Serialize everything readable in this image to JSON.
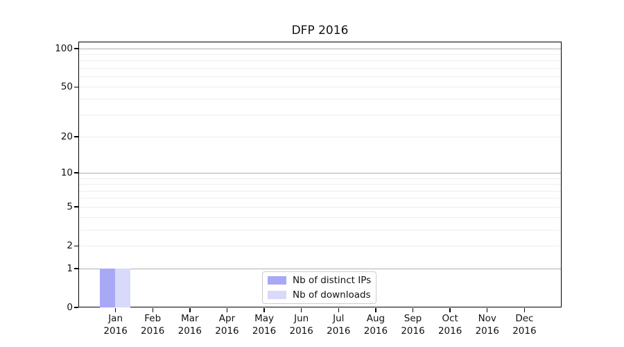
{
  "title": "DFP 2016",
  "chart_data": {
    "type": "bar",
    "title": "DFP 2016",
    "categories": [
      "Jan",
      "Feb",
      "Mar",
      "Apr",
      "May",
      "Jun",
      "Jul",
      "Aug",
      "Sep",
      "Oct",
      "Nov",
      "Dec"
    ],
    "x_year": "2016",
    "series": [
      {
        "name": "Nb of distinct IPs",
        "color": "#a8a8f6",
        "values": [
          1,
          0,
          0,
          0,
          0,
          0,
          0,
          0,
          0,
          0,
          0,
          0
        ]
      },
      {
        "name": "Nb of downloads",
        "color": "#d9d9f9",
        "values": [
          1,
          0,
          0,
          0,
          0,
          0,
          0,
          0,
          0,
          0,
          0,
          0
        ]
      }
    ],
    "y_ticks": [
      0,
      1,
      2,
      5,
      10,
      20,
      50,
      100
    ],
    "major_grid_values": [
      1,
      10,
      100
    ],
    "minor_grid_values": [
      2,
      3,
      4,
      5,
      6,
      7,
      8,
      9,
      20,
      30,
      40,
      50,
      60,
      70,
      80,
      90
    ],
    "scale": "log1p",
    "ylim": [
      0,
      114
    ],
    "grid": true,
    "legend_position": "lower center",
    "colors": {
      "major_grid": "#b0b0b0",
      "minor_grid": "#ededed",
      "axis": "#000000"
    }
  }
}
